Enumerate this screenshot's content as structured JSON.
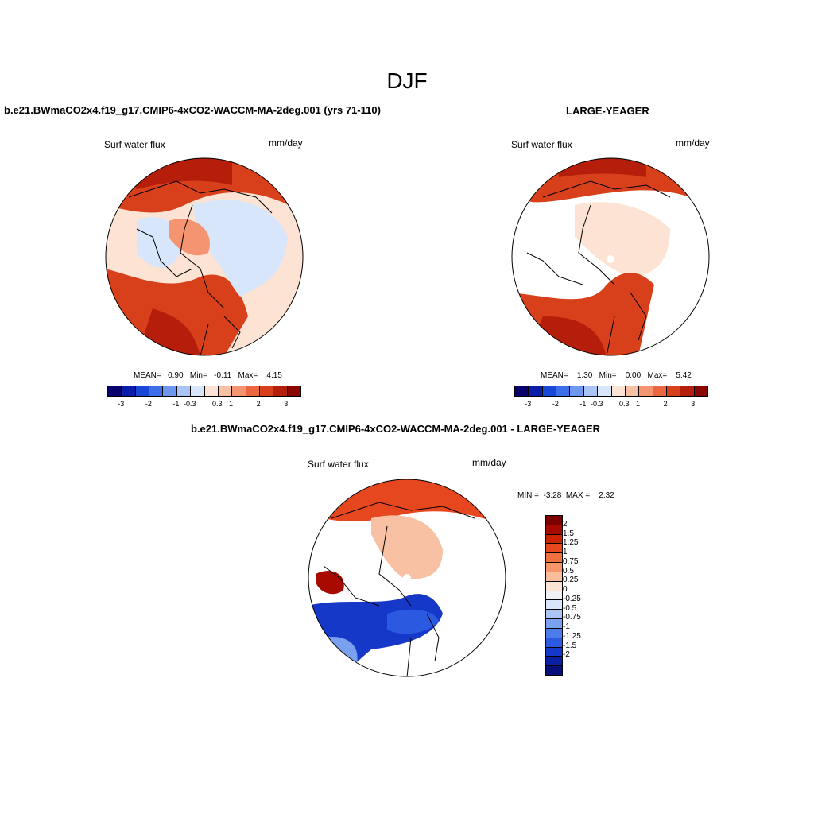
{
  "main_title": "DJF",
  "panels": {
    "model": {
      "title": "b.e21.BWmaCO2x4.f19_g17.CMIP6-4xCO2-WACCM-MA-2deg.001 (yrs 71-110)",
      "variable": "Surf water flux",
      "units": "mm/day",
      "stats": "MEAN=   0.90   Min=   -0.11   Max=    4.15",
      "colorbar_ticks": [
        "-3",
        "-2",
        "-1",
        "-0.3",
        "0.3",
        "1",
        "2",
        "3"
      ]
    },
    "obs": {
      "title": "LARGE-YEAGER",
      "variable": "Surf water flux",
      "units": "mm/day",
      "stats": "MEAN=    1.30   Min=    0.00   Max=    5.42",
      "colorbar_ticks": [
        "-3",
        "-2",
        "-1",
        "-0.3",
        "0.3",
        "1",
        "2",
        "3"
      ]
    },
    "diff": {
      "title": "b.e21.BWmaCO2x4.f19_g17.CMIP6-4xCO2-WACCM-MA-2deg.001 - LARGE-YEAGER",
      "variable": "Surf water flux",
      "units": "mm/day",
      "stats": "MIN =  -3.28  MAX =    2.32",
      "colorbar_ticks": [
        "2",
        "1.5",
        "1.25",
        "1",
        "0.75",
        "0.5",
        "0.25",
        "0",
        "-0.25",
        "-0.5",
        "-0.75",
        "-1",
        "-1.25",
        "-1.5",
        "-2"
      ]
    }
  },
  "colors": {
    "abs_palette": [
      "#08006b",
      "#0a1ea8",
      "#1846d6",
      "#3a6fe8",
      "#6e98f0",
      "#a9c4f5",
      "#d7e6fb",
      "#fde3d3",
      "#f9c1a3",
      "#f59470",
      "#ec6740",
      "#d8401c",
      "#b51e0a",
      "#8a0600"
    ],
    "diff_palette": [
      "#7d0000",
      "#a80a00",
      "#cc2300",
      "#e6471f",
      "#f2703f",
      "#f7956a",
      "#fbbd9b",
      "#fde3d3",
      "#eef2f8",
      "#d7e6fb",
      "#a9c4f5",
      "#7aa1f0",
      "#4d7ce8",
      "#2b5ae0",
      "#1538c8",
      "#0a20a4",
      "#070f7a"
    ],
    "land": "#ffffff",
    "coast": "#000000"
  }
}
